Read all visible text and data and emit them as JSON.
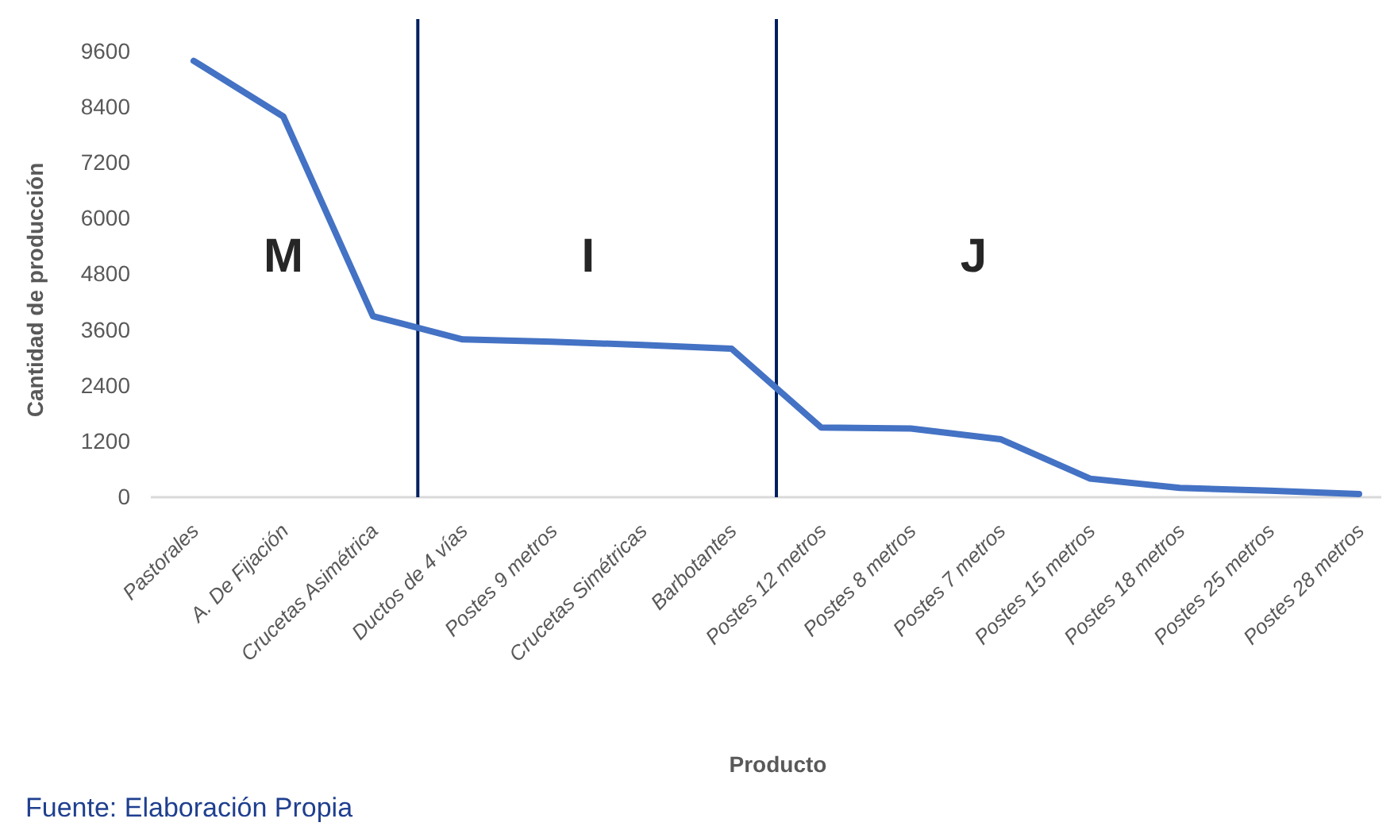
{
  "chart_data": {
    "type": "line",
    "ylabel": "Cantidad de producción",
    "xlabel": "Producto",
    "categories": [
      "Pastorales",
      "A. De Fijación",
      "Crucetas Asimétrica",
      "Ductos de 4 vías",
      "Postes 9 metros",
      "Crucetas Simétricas",
      "Barbotantes",
      "Postes 12 metros",
      "Postes 8 metros",
      "Postes 7 metros",
      "Postes 15 metros",
      "Postes 18 metros",
      "Postes 25 metros",
      "Postes 28 metros"
    ],
    "series": [
      {
        "color": "#4472c4",
        "values": [
          9400,
          8200,
          3900,
          3400,
          3350,
          3280,
          3200,
          1500,
          1480,
          1250,
          400,
          200,
          140,
          70
        ]
      }
    ],
    "ylim": [
      0,
      10300
    ],
    "yticks": [
      0,
      1200,
      2400,
      3600,
      4800,
      6000,
      7200,
      8400,
      9600
    ],
    "grid": false,
    "marker": "none",
    "line_style": "solid",
    "annotations": [
      "M",
      "I",
      "J",
      "Fuente: Elaboración Propia"
    ]
  }
}
